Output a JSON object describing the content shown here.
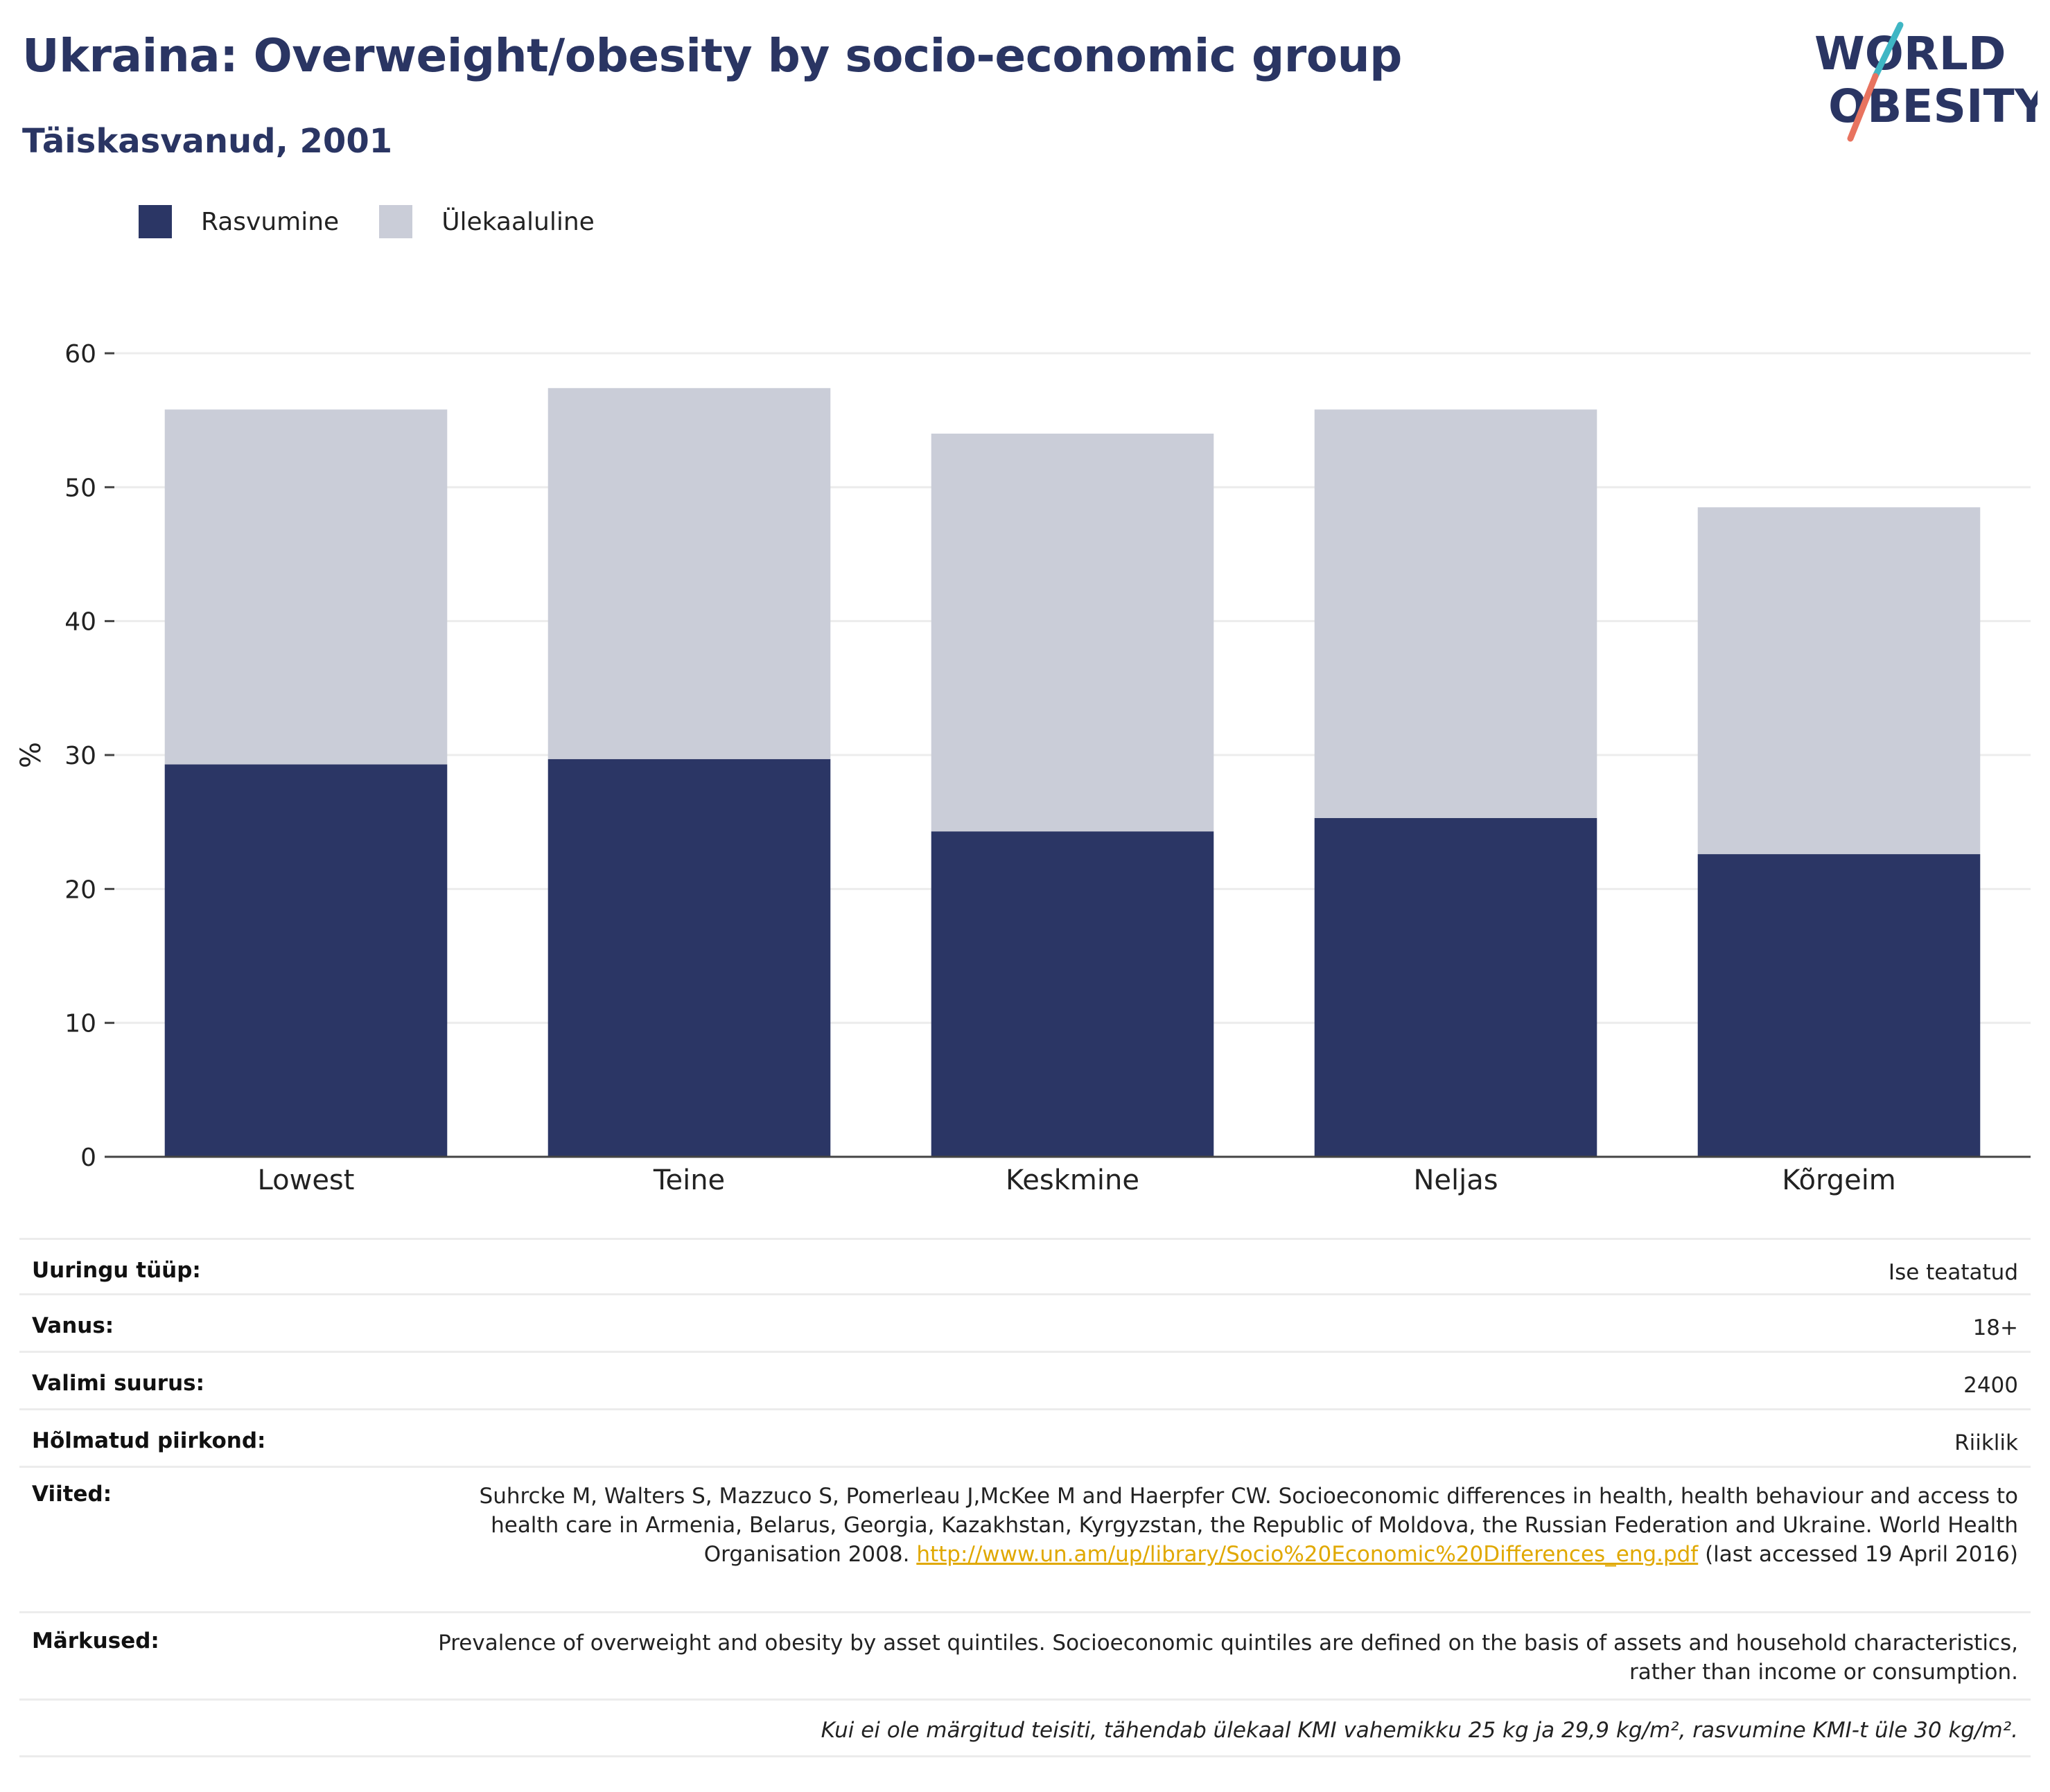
{
  "header": {
    "title": "Ukraina: Overweight/obesity by socio-economic group",
    "subtitle": "Täiskasvanud, 2001"
  },
  "logo": {
    "line1": "WORLD",
    "line2": "OBESITY"
  },
  "colors": {
    "title": "#2a3563",
    "obesity": "#2b3665",
    "overweight": "#cacdd8",
    "logo_slash_top": "#3fb6c4",
    "logo_slash_bottom": "#e8735f",
    "link": "#e0a800"
  },
  "legend": [
    {
      "label": "Rasvumine",
      "color": "#2b3665"
    },
    {
      "label": "Ülekaaluline",
      "color": "#cacdd8"
    }
  ],
  "chart_data": {
    "type": "bar",
    "stacked": true,
    "categories": [
      "Lowest",
      "Teine",
      "Keskmine",
      "Neljas",
      "Kõrgeim"
    ],
    "series": [
      {
        "name": "Rasvumine",
        "values": [
          29.3,
          29.7,
          24.3,
          25.3,
          22.6
        ]
      },
      {
        "name": "Ülekaaluline",
        "values": [
          26.5,
          27.7,
          29.7,
          30.5,
          25.9
        ]
      }
    ],
    "ylabel": "%",
    "xlabel": "",
    "ylim": [
      0,
      60
    ],
    "yticks": [
      0,
      10,
      20,
      30,
      40,
      50,
      60
    ],
    "grid": true,
    "legend_position": "top-left"
  },
  "info": {
    "survey_type": {
      "label": "Uuringu tüüp:",
      "value": "Ise teatatud"
    },
    "age": {
      "label": "Vanus:",
      "value": "18+"
    },
    "sample_size": {
      "label": "Valimi suurus:",
      "value": "2400"
    },
    "area": {
      "label": "Hõlmatud piirkond:",
      "value": "Riiklik"
    },
    "references": {
      "label": "Viited:",
      "text_before": "Suhrcke M, Walters S, Mazzuco S, Pomerleau J,McKee M and Haerpfer CW. Socioeconomic differences in health, health behaviour and access to health care in Armenia, Belarus, Georgia, Kazakhstan, Kyrgyzstan, the Republic of Moldova, the Russian Federation and Ukraine. World Health Organisation 2008.",
      "link": "http://www.un.am/up/library/Socio%20Economic%20Differences_eng.pdf",
      "text_after": "(last accessed 19 April 2016)"
    },
    "notes": {
      "label": "Märkused:",
      "value": "Prevalence of overweight and obesity by asset quintiles. Socioeconomic quintiles are defined on the basis of assets and household characteristics, rather than income or consumption."
    },
    "footnote": "Kui ei ole märgitud teisiti, tähendab ülekaal KMI vahemikku 25 kg ja 29,9 kg/m², rasvumine KMI-t üle 30 kg/m²."
  }
}
